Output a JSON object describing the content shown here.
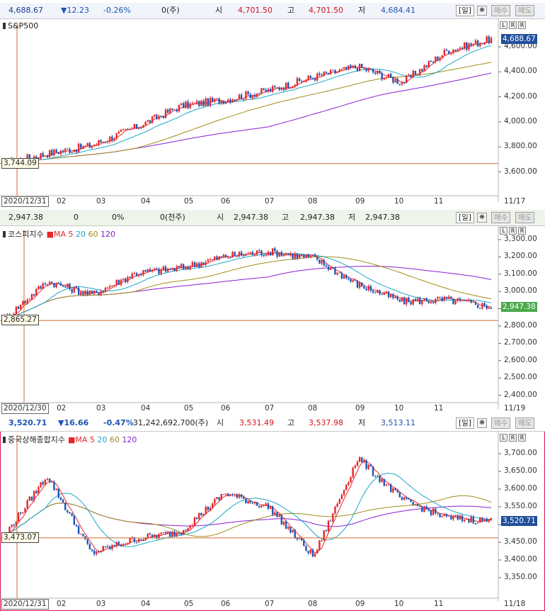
{
  "panels": [
    {
      "id": "sp500",
      "header": {
        "price": "4,688.67",
        "change": "▼12.23",
        "change_pct": "-0.26%",
        "volume": "0(주)",
        "open_label": "시",
        "open": "4,701.50",
        "high_label": "고",
        "high": "4,701.50",
        "low_label": "저",
        "low": "4,684.41",
        "period": "[일]",
        "buy_label": "매수",
        "sell_label": "매도"
      },
      "title": "S&P500",
      "ma_legend": [],
      "y_ticks": [
        "4,600.00",
        "4,400.00",
        "4,200.00",
        "4,000.00",
        "3,800.00",
        "3,600.00"
      ],
      "x_ticks": [
        "02",
        "03",
        "04",
        "05",
        "06",
        "07",
        "08",
        "09",
        "10",
        "11"
      ],
      "start_date": "2020/12/31",
      "end_date": "11/17",
      "last_value": "4,688.67",
      "ref_value": "3,744.09",
      "colors": {
        "last_bg": "#1f4e9c",
        "up": "#e8262a",
        "down": "#1c55b5",
        "ma5": "#e8262a",
        "ma20": "#1aa7c9",
        "ma60": "#a08c16",
        "ma120": "#8a1ed6",
        "ref": "#d46a2a"
      }
    },
    {
      "id": "kospi",
      "header": {
        "price": "2,947.38",
        "change": "0",
        "change_pct": "0%",
        "volume": "0(천주)",
        "open_label": "시",
        "open": "2,947.38",
        "high_label": "고",
        "high": "2,947.38",
        "low_label": "저",
        "low": "2,947.38",
        "period": "[일]",
        "buy_label": "매수",
        "sell_label": "매도"
      },
      "title": "코스피지수",
      "ma_legend": [
        "MA",
        "5",
        "20",
        "60",
        "120"
      ],
      "y_ticks": [
        "3,300.00",
        "3,200.00",
        "3,100.00",
        "3,000.00",
        "2,900.00",
        "2,800.00",
        "2,700.00",
        "2,600.00",
        "2,500.00",
        "2,400.00"
      ],
      "x_ticks": [
        "02",
        "03",
        "04",
        "05",
        "06",
        "07",
        "08",
        "09",
        "10",
        "11"
      ],
      "start_date": "2020/12/30",
      "end_date": "11/19",
      "last_value": "2,947.38",
      "ref_value": "2,865.27",
      "colors": {
        "last_bg": "#4aa84a",
        "up": "#e8262a",
        "down": "#1c55b5",
        "ma5": "#e8262a",
        "ma20": "#1aa7c9",
        "ma60": "#a08c16",
        "ma120": "#8a1ed6",
        "ref": "#d46a2a"
      }
    },
    {
      "id": "shanghai",
      "header": {
        "price": "3,520.71",
        "change": "▼16.66",
        "change_pct": "-0.47%",
        "volume": "31,242,692,700(주)",
        "open_label": "시",
        "open": "3,531.49",
        "high_label": "고",
        "high": "3,537.98",
        "low_label": "저",
        "low": "3,513.11",
        "period": "[일]",
        "buy_label": "매수",
        "sell_label": "매도"
      },
      "title": "중국상해종합지수",
      "ma_legend": [
        "MA",
        "5",
        "20",
        "60",
        "120"
      ],
      "y_ticks": [
        "3,700.00",
        "3,650.00",
        "3,600.00",
        "3,550.00",
        "3,500.00",
        "3,450.00",
        "3,400.00",
        "3,350.00"
      ],
      "x_ticks": [
        "02",
        "03",
        "04",
        "05",
        "06",
        "07",
        "08",
        "09",
        "10",
        "11"
      ],
      "start_date": "2020/12/31",
      "end_date": "11/18",
      "last_value": "3,520.71",
      "ref_value": "3,473.07",
      "colors": {
        "last_bg": "#1f4e9c",
        "up": "#e8262a",
        "down": "#1c55b5",
        "ma5": "#e8262a",
        "ma20": "#1aa7c9",
        "ma60": "#a08c16",
        "ma120": "#8a1ed6",
        "ref": "#d46a2a"
      }
    }
  ],
  "chart_data": [
    {
      "type": "line",
      "title": "S&P500",
      "x": [
        "2020/12/31",
        "02",
        "03",
        "04",
        "05",
        "06",
        "07",
        "08",
        "09",
        "10",
        "11",
        "11/17"
      ],
      "series": [
        {
          "values": [
            3744,
            3820,
            3880,
            4020,
            4180,
            4230,
            4300,
            4400,
            4480,
            4360,
            4600,
            4689
          ]
        }
      ],
      "ylim": [
        3500,
        4750
      ]
    },
    {
      "type": "line",
      "title": "코스피지수",
      "x": [
        "2020/12/30",
        "02",
        "03",
        "04",
        "05",
        "06",
        "07",
        "08",
        "09",
        "10",
        "11",
        "11/19"
      ],
      "series": [
        {
          "values": [
            2865,
            3100,
            3020,
            3150,
            3180,
            3250,
            3280,
            3240,
            3080,
            2980,
            2990,
            2947
          ]
        }
      ],
      "ylim": [
        2380,
        3360
      ]
    },
    {
      "type": "line",
      "title": "중국상해종합지수",
      "x": [
        "2020/12/31",
        "02",
        "03",
        "04",
        "05",
        "06",
        "07",
        "08",
        "09",
        "10",
        "11",
        "11/18"
      ],
      "series": [
        {
          "values": [
            3473,
            3650,
            3430,
            3470,
            3490,
            3600,
            3560,
            3420,
            3700,
            3580,
            3530,
            3521
          ]
        }
      ],
      "ylim": [
        3310,
        3740
      ]
    }
  ]
}
